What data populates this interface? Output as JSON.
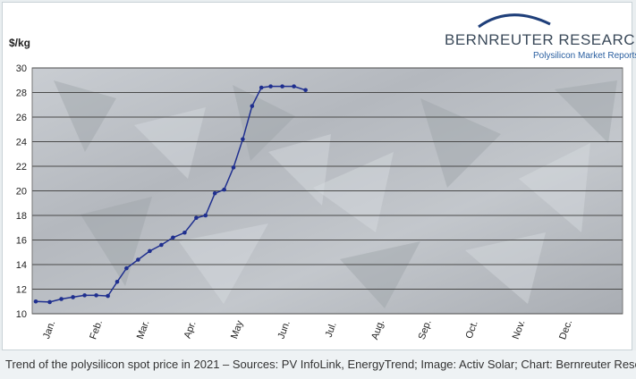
{
  "logo": {
    "name": "BERNREUTER RESEARCH",
    "subtitle": "Polysilicon Market Reports"
  },
  "caption": "Trend of the polysilicon spot price in 2021 – Sources: PV InfoLink, EnergyTrend; Image: Activ Solar; Chart: Bernreuter Research",
  "chart_data": {
    "type": "line",
    "title": "",
    "xlabel": "",
    "ylabel": "$/kg",
    "ylim": [
      10,
      30
    ],
    "yticks": [
      10,
      12,
      14,
      16,
      18,
      20,
      22,
      24,
      26,
      28,
      30
    ],
    "months": [
      "Jan.",
      "Feb.",
      "Mar.",
      "Apr.",
      "May",
      "Jun.",
      "Jul.",
      "Aug.",
      "Sep.",
      "Oct.",
      "Nov.",
      "Dec."
    ],
    "grid": true,
    "line_color": "#1f2f8f",
    "series": [
      {
        "x": [
          0.0,
          0.3,
          0.55,
          0.8,
          1.05,
          1.3,
          1.55,
          1.75,
          1.95,
          2.2,
          2.45,
          2.7,
          2.95,
          3.2,
          3.45,
          3.65,
          3.85,
          4.05,
          4.25,
          4.45,
          4.65,
          4.85,
          5.05,
          5.3,
          5.55,
          5.8
        ],
        "values": [
          11.0,
          10.95,
          11.2,
          11.35,
          11.5,
          11.5,
          11.45,
          12.6,
          13.7,
          14.4,
          15.1,
          15.6,
          16.2,
          16.6,
          17.8,
          18.0,
          19.8,
          20.1,
          21.9,
          24.2,
          26.9,
          28.4,
          28.5,
          28.5,
          28.5,
          28.2
        ]
      }
    ]
  }
}
